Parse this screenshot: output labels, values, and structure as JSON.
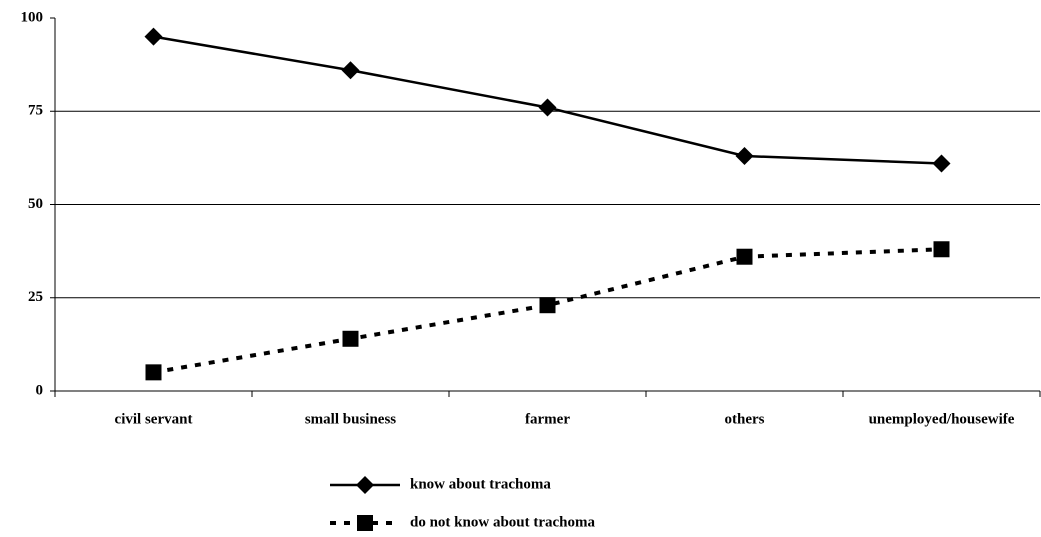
{
  "chart_data": {
    "type": "line",
    "categories": [
      "civil servant",
      "small business",
      "farmer",
      "others",
      "unemployed/housewife"
    ],
    "series": [
      {
        "name": "know about trachoma",
        "color": "#000000",
        "marker": "diamond",
        "dash": "solid",
        "values": [
          95,
          86,
          76,
          63,
          61
        ]
      },
      {
        "name": "do not know about trachoma",
        "color": "#000000",
        "marker": "square",
        "dash": "dotted",
        "values": [
          5,
          14,
          23,
          36,
          38
        ]
      }
    ],
    "ylim": [
      0,
      100
    ],
    "yticks": [
      0,
      25,
      50,
      75,
      100
    ],
    "grid": true,
    "legend": "bottom"
  }
}
